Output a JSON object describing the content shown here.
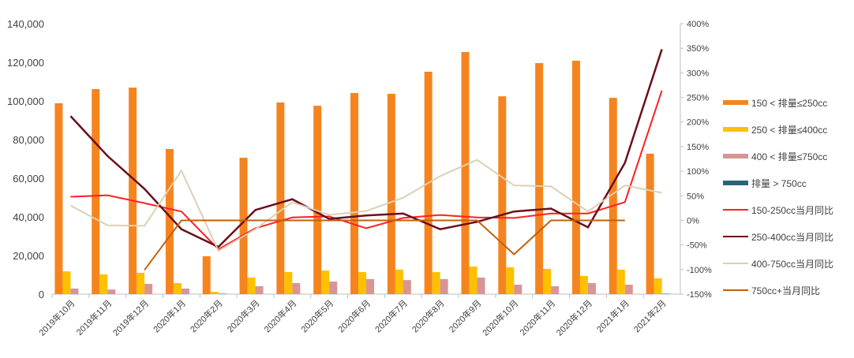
{
  "chart_data": {
    "type": "bar+line",
    "categories": [
      "2019年10月",
      "2019年11月",
      "2019年12月",
      "2020年1月",
      "2020年2月",
      "2020年3月",
      "2020年4月",
      "2020年5月",
      "2020年6月",
      "2020年7月",
      "2020年8月",
      "2020年9月",
      "2020年10月",
      "2020年11月",
      "2020年12月",
      "2021年1月",
      "2021年2月"
    ],
    "y_left": {
      "range": [
        0,
        140000
      ],
      "ticks": [
        "0",
        "20,000",
        "40,000",
        "60,000",
        "80,000",
        "100,000",
        "120,000",
        "140,000"
      ]
    },
    "y_right": {
      "range": [
        -150,
        400
      ],
      "ticks": [
        "-150%",
        "-100%",
        "-50%",
        "0%",
        "50%",
        "100%",
        "150%",
        "200%",
        "250%",
        "300%",
        "350%",
        "400%"
      ]
    },
    "grid": false,
    "legend": "right",
    "bar_series": [
      {
        "name": "150 < 排量≤250cc",
        "color": "#F5841F",
        "values": [
          98800,
          106100,
          106900,
          75100,
          19600,
          70600,
          99200,
          97500,
          104100,
          103700,
          115100,
          125300,
          102400,
          119600,
          120800,
          101600,
          72700
        ]
      },
      {
        "name": "250 < 排量≤400cc",
        "color": "#FFC000",
        "values": [
          11800,
          10200,
          11000,
          5700,
          1200,
          8600,
          11400,
          12200,
          11400,
          12700,
          11400,
          14300,
          13900,
          13100,
          9400,
          12700,
          8200
        ]
      },
      {
        "name": "400 < 排量≤750cc",
        "color": "#D99594",
        "values": [
          2900,
          2400,
          5300,
          2900,
          400,
          4100,
          5700,
          6500,
          7800,
          7300,
          7800,
          8600,
          4900,
          4100,
          5700,
          4900,
          400
        ]
      },
      {
        "name": "排量 > 750cc",
        "color": "#2A6478",
        "values": [
          0,
          0,
          0,
          0,
          0,
          0,
          0,
          0,
          0,
          0,
          0,
          0,
          0,
          0,
          0,
          0,
          0
        ]
      }
    ],
    "line_series": [
      {
        "name": "150-250cc当月同比",
        "color": "#FF2020",
        "values": [
          48,
          51,
          35,
          18,
          -59,
          -16,
          6,
          8,
          -16,
          5,
          11,
          6,
          5,
          14,
          14,
          37,
          264
        ]
      },
      {
        "name": "250-400cc当月同比",
        "color": "#6B0F1A",
        "values": [
          212,
          131,
          64,
          -18,
          -54,
          21,
          43,
          3,
          10,
          14,
          -18,
          -3,
          18,
          24,
          -14,
          117,
          348
        ]
      },
      {
        "name": "400-750cc当月同比",
        "color": "#DDD0B4",
        "values": [
          30,
          -10,
          -11,
          101,
          -62,
          -18,
          37,
          11,
          19,
          46,
          90,
          123,
          71,
          69,
          18,
          71,
          56
        ]
      },
      {
        "name": "750cc+当月同比",
        "color": "#C0600C",
        "values": [
          null,
          null,
          -101,
          0,
          0,
          0,
          0,
          0,
          0,
          0,
          0,
          0,
          -69,
          0,
          0,
          0,
          null
        ]
      }
    ]
  }
}
